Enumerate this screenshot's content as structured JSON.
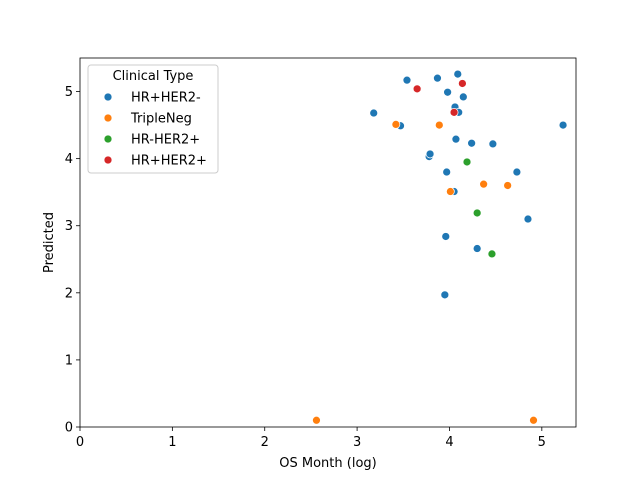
{
  "chart_data": {
    "type": "scatter",
    "title": "",
    "xlabel": "OS Month (log)",
    "ylabel": "Predicted",
    "xlim": [
      0,
      5.37
    ],
    "ylim": [
      0,
      5.5
    ],
    "xticks": [
      0,
      1,
      2,
      3,
      4,
      5
    ],
    "yticks": [
      0,
      1,
      2,
      3,
      4,
      5
    ],
    "grid": false,
    "legend": {
      "title": "Clinical Type",
      "placement": "top-left"
    },
    "series": [
      {
        "name": "HR+HER2-",
        "color": "#1f77b4",
        "points": [
          [
            3.18,
            4.68
          ],
          [
            3.47,
            4.49
          ],
          [
            3.54,
            5.17
          ],
          [
            3.78,
            4.03
          ],
          [
            3.79,
            4.07
          ],
          [
            3.87,
            5.2
          ],
          [
            3.96,
            2.84
          ],
          [
            3.97,
            3.8
          ],
          [
            3.98,
            4.99
          ],
          [
            4.05,
            3.51
          ],
          [
            4.06,
            4.77
          ],
          [
            4.07,
            4.29
          ],
          [
            4.09,
            5.26
          ],
          [
            4.1,
            4.69
          ],
          [
            4.15,
            4.92
          ],
          [
            4.24,
            4.23
          ],
          [
            4.3,
            2.66
          ],
          [
            4.47,
            4.22
          ],
          [
            4.73,
            3.8
          ],
          [
            4.85,
            3.1
          ],
          [
            5.23,
            4.5
          ],
          [
            3.95,
            1.97
          ]
        ]
      },
      {
        "name": "TripleNeg",
        "color": "#ff7f0e",
        "points": [
          [
            2.56,
            0.1
          ],
          [
            3.42,
            4.51
          ],
          [
            3.89,
            4.5
          ],
          [
            4.01,
            3.51
          ],
          [
            4.37,
            3.62
          ],
          [
            4.63,
            3.6
          ],
          [
            4.91,
            0.1
          ]
        ]
      },
      {
        "name": "HR-HER2+",
        "color": "#2ca02c",
        "points": [
          [
            4.19,
            3.95
          ],
          [
            4.3,
            3.19
          ],
          [
            4.46,
            2.58
          ]
        ]
      },
      {
        "name": "HR+HER2+",
        "color": "#d62728",
        "points": [
          [
            3.65,
            5.04
          ],
          [
            4.05,
            4.69
          ],
          [
            4.14,
            5.12
          ]
        ]
      }
    ]
  }
}
